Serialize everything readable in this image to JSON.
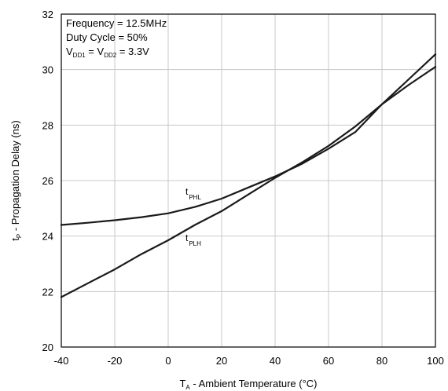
{
  "chart_data": {
    "type": "line",
    "xlabel": {
      "main": "T",
      "sub": "A",
      "rest": " - Ambient Temperature (°C)"
    },
    "ylabel": {
      "main": "t",
      "sub": "P",
      "rest": " - Propagation Delay (ns)"
    },
    "xlim": [
      -40,
      100
    ],
    "ylim": [
      20,
      32
    ],
    "xticks": [
      -40,
      -20,
      0,
      20,
      40,
      60,
      80,
      100
    ],
    "yticks": [
      20,
      22,
      24,
      26,
      28,
      30,
      32
    ],
    "grid": true,
    "annotations": {
      "frequency": "Frequency = 12.5MHz",
      "duty_cycle": "Duty Cycle = 50%",
      "vdd_a": "V",
      "vdd_a_sub": "DD1",
      "vdd_mid": " = V",
      "vdd_b_sub": "DD2",
      "vdd_rest": " = 3.3V"
    },
    "series": [
      {
        "name": "t_PHL",
        "label_main": "t",
        "label_sub": "PHL",
        "x": [
          -40,
          -30,
          -20,
          -10,
          0,
          10,
          20,
          30,
          40,
          50,
          60,
          70,
          80,
          90,
          100
        ],
        "y": [
          24.4,
          24.48,
          24.57,
          24.68,
          24.82,
          25.05,
          25.35,
          25.75,
          26.15,
          26.6,
          27.15,
          27.75,
          28.75,
          29.45,
          30.1
        ]
      },
      {
        "name": "t_PLH",
        "label_main": "t",
        "label_sub": "PLH",
        "x": [
          -40,
          -30,
          -20,
          -10,
          0,
          10,
          20,
          30,
          40,
          50,
          60,
          70,
          80,
          90,
          100
        ],
        "y": [
          21.8,
          22.3,
          22.8,
          23.35,
          23.85,
          24.4,
          24.9,
          25.5,
          26.1,
          26.65,
          27.25,
          27.95,
          28.75,
          29.65,
          30.55
        ]
      }
    ]
  }
}
